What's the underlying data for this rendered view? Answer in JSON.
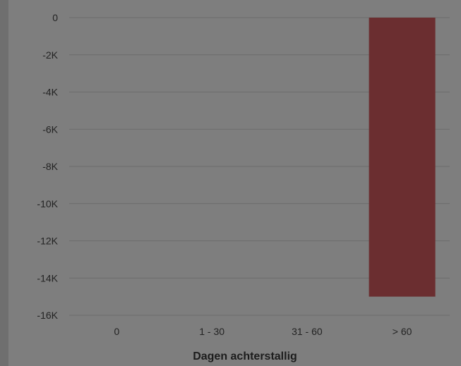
{
  "chart_data": {
    "type": "bar",
    "categories": [
      "0",
      "1 - 30",
      "31 - 60",
      "> 60"
    ],
    "values": [
      0,
      0,
      0,
      -15000
    ],
    "ylim": [
      -16000,
      0
    ],
    "yticks": [
      0,
      -2000,
      -4000,
      -6000,
      -8000,
      -10000,
      -12000,
      -14000,
      -16000
    ],
    "ytick_labels": [
      "0",
      "-2K",
      "-4K",
      "-6K",
      "-8K",
      "-10K",
      "-12K",
      "-14K",
      "-16K"
    ],
    "xlabel": "Dagen achterstallig",
    "ylabel": "",
    "grid": true,
    "bar_color": "#6b2e30"
  }
}
